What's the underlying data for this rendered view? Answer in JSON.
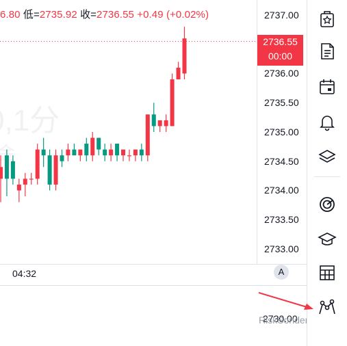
{
  "header": {
    "open_tail": "6.80",
    "low_label": "低=",
    "low_value": "2735.92",
    "close_label": "收=",
    "close_value": "2736.55",
    "change": "+0.49 (+0.02%)"
  },
  "watermark": {
    "interval": "0,1分",
    "extra": "金"
  },
  "price_axis": {
    "ticks": [
      "2737.00",
      "2736.00",
      "2735.50",
      "2735.00",
      "2734.50",
      "2734.00",
      "2733.50",
      "2733.00"
    ],
    "last_price": "2736.55",
    "countdown": "00:00"
  },
  "time_axis": {
    "label": "04:32",
    "auto_button": "A"
  },
  "lower_pane": {
    "tick": "2730.00"
  },
  "brand": "RiskSonder",
  "sidebar": {
    "icons": [
      "watchlist-icon",
      "news-icon",
      "calendar-icon",
      "alert-bell-icon",
      "layers-icon",
      "target-icon",
      "education-cap-icon",
      "table-icon",
      "chart-nodes-icon"
    ]
  },
  "colors": {
    "up": "#f23645",
    "down": "#089981",
    "arrow": "#f23645",
    "grid": "#e0e3eb"
  },
  "chart_data": {
    "type": "candlestick",
    "y_axis_range": [
      2732.8,
      2737.2
    ],
    "candles": [
      {
        "o": 2734.2,
        "h": 2734.6,
        "l": 2733.8,
        "c": 2734.4
      },
      {
        "o": 2734.6,
        "h": 2734.7,
        "l": 2733.9,
        "c": 2734.2
      },
      {
        "o": 2734.5,
        "h": 2734.6,
        "l": 2734.1,
        "c": 2734.2
      },
      {
        "o": 2734.0,
        "h": 2734.2,
        "l": 2733.8,
        "c": 2734.1
      },
      {
        "o": 2734.1,
        "h": 2734.3,
        "l": 2733.9,
        "c": 2734.2
      },
      {
        "o": 2734.2,
        "h": 2734.3,
        "l": 2734.1,
        "c": 2734.2
      },
      {
        "o": 2734.2,
        "h": 2734.8,
        "l": 2734.1,
        "c": 2734.7
      },
      {
        "o": 2734.7,
        "h": 2734.9,
        "l": 2734.4,
        "c": 2734.6
      },
      {
        "o": 2734.6,
        "h": 2734.7,
        "l": 2734.0,
        "c": 2734.1
      },
      {
        "o": 2734.1,
        "h": 2734.7,
        "l": 2734.0,
        "c": 2734.6
      },
      {
        "o": 2734.6,
        "h": 2734.7,
        "l": 2734.4,
        "c": 2734.5
      },
      {
        "o": 2734.6,
        "h": 2734.8,
        "l": 2734.5,
        "c": 2734.7
      },
      {
        "o": 2734.7,
        "h": 2734.8,
        "l": 2734.6,
        "c": 2734.6
      },
      {
        "o": 2734.6,
        "h": 2734.7,
        "l": 2734.5,
        "c": 2734.7
      },
      {
        "o": 2734.8,
        "h": 2734.9,
        "l": 2734.5,
        "c": 2734.6
      },
      {
        "o": 2734.6,
        "h": 2735.0,
        "l": 2734.5,
        "c": 2734.9
      },
      {
        "o": 2734.9,
        "h": 2734.9,
        "l": 2734.6,
        "c": 2734.7
      },
      {
        "o": 2734.7,
        "h": 2734.8,
        "l": 2734.5,
        "c": 2734.6
      },
      {
        "o": 2734.6,
        "h": 2734.8,
        "l": 2734.5,
        "c": 2734.7
      },
      {
        "o": 2734.8,
        "h": 2734.8,
        "l": 2734.5,
        "c": 2734.6
      },
      {
        "o": 2734.6,
        "h": 2734.7,
        "l": 2734.5,
        "c": 2734.7
      },
      {
        "o": 2734.6,
        "h": 2734.7,
        "l": 2734.5,
        "c": 2734.6
      },
      {
        "o": 2734.6,
        "h": 2734.7,
        "l": 2734.5,
        "c": 2734.7
      },
      {
        "o": 2734.7,
        "h": 2734.8,
        "l": 2734.5,
        "c": 2734.6
      },
      {
        "o": 2734.6,
        "h": 2735.3,
        "l": 2734.5,
        "c": 2735.3
      },
      {
        "o": 2735.3,
        "h": 2735.5,
        "l": 2735.0,
        "c": 2735.1
      },
      {
        "o": 2735.1,
        "h": 2735.2,
        "l": 2735.0,
        "c": 2735.2
      },
      {
        "o": 2735.1,
        "h": 2735.3,
        "l": 2735.0,
        "c": 2735.2
      },
      {
        "o": 2735.1,
        "h": 2736.0,
        "l": 2735.1,
        "c": 2735.9
      },
      {
        "o": 2735.9,
        "h": 2736.2,
        "l": 2735.9,
        "c": 2736.1
      },
      {
        "o": 2736.0,
        "h": 2736.8,
        "l": 2735.9,
        "c": 2736.6
      }
    ]
  }
}
